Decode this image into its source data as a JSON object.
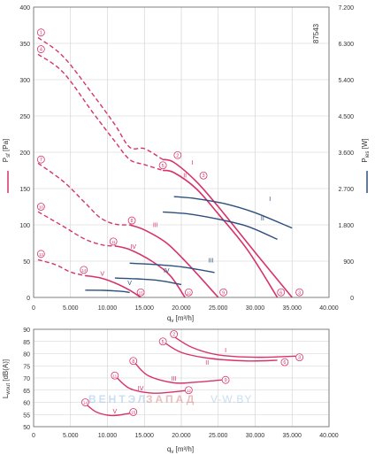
{
  "chart_data": [
    {
      "type": "line",
      "id": "fan-pressure-power",
      "code": "87543",
      "xlabel": "q",
      "xlabel_sub": "v",
      "xlabel_unit": "[m³/h]",
      "ylabel": "P",
      "ylabel_sub": "sf",
      "ylabel_unit": "[Pa]",
      "y2label": "P",
      "y2label_sub": "ies",
      "y2label_unit": "[W]",
      "xlim": [
        0,
        40000
      ],
      "ylim": [
        0,
        400
      ],
      "y2lim": [
        0,
        7200
      ],
      "xticks": [
        0,
        5000,
        10000,
        15000,
        20000,
        25000,
        30000,
        35000,
        40000
      ],
      "xtick_labels": [
        "0",
        "5.000",
        "10.000",
        "15.000",
        "20.000",
        "25.000",
        "30.000",
        "35.000",
        "40.000"
      ],
      "yticks": [
        0,
        50,
        100,
        150,
        200,
        250,
        300,
        350,
        400
      ],
      "ytick_labels": [
        "0",
        "50",
        "100",
        "150",
        "200",
        "250",
        "300",
        "350",
        "400"
      ],
      "y2ticks": [
        0,
        900,
        1800,
        2700,
        3600,
        4500,
        5400,
        6300,
        7200
      ],
      "y2tick_labels": [
        "0",
        "900",
        "1.800",
        "2.700",
        "3.600",
        "4.500",
        "5.400",
        "6.300",
        "7.200"
      ],
      "grid": true,
      "colors": {
        "pressure": "#d6336c",
        "power": "#2c4f7c",
        "grid": "#c8c8c8",
        "axis": "#555555"
      },
      "pressure_series": [
        {
          "name": "I",
          "points": [
            [
              17500,
              190
            ],
            [
              19000,
              186
            ],
            [
              22000,
              160
            ],
            [
              25000,
              125
            ],
            [
              30000,
              62
            ],
            [
              35000,
              0
            ]
          ],
          "dashed_points": [
            [
              600,
              358
            ],
            [
              4000,
              332
            ],
            [
              8000,
              280
            ],
            [
              11000,
              238
            ],
            [
              13000,
              207
            ],
            [
              15000,
              205
            ],
            [
              17500,
              190
            ]
          ]
        },
        {
          "name": "II",
          "points": [
            [
              17500,
              175
            ],
            [
              19000,
              172
            ],
            [
              22000,
              150
            ],
            [
              25000,
              115
            ],
            [
              29000,
              65
            ],
            [
              33000,
              0
            ]
          ],
          "dashed_points": [
            [
              600,
              335
            ],
            [
              4000,
              310
            ],
            [
              8000,
              255
            ],
            [
              11000,
              215
            ],
            [
              13000,
              190
            ],
            [
              15000,
              183
            ],
            [
              17500,
              175
            ]
          ]
        },
        {
          "name": "III",
          "points": [
            [
              13000,
              100
            ],
            [
              15000,
              93
            ],
            [
              18000,
              75
            ],
            [
              21000,
              45
            ],
            [
              25000,
              0
            ]
          ],
          "dashed_points": [
            [
              600,
              185
            ],
            [
              4000,
              160
            ],
            [
              7000,
              130
            ],
            [
              9000,
              110
            ],
            [
              11000,
              101
            ],
            [
              13000,
              100
            ]
          ]
        },
        {
          "name": "IV",
          "points": [
            [
              11000,
              71
            ],
            [
              13000,
              66
            ],
            [
              16000,
              50
            ],
            [
              18500,
              30
            ],
            [
              20500,
              0
            ]
          ],
          "dashed_points": [
            [
              600,
              118
            ],
            [
              4000,
              98
            ],
            [
              7000,
              80
            ],
            [
              9500,
              72
            ],
            [
              11000,
              71
            ]
          ]
        },
        {
          "name": "V",
          "points": [
            [
              7000,
              30
            ],
            [
              9000,
              27
            ],
            [
              11000,
              20
            ],
            [
              13000,
              10
            ],
            [
              14500,
              0
            ]
          ],
          "dashed_points": [
            [
              600,
              52
            ],
            [
              3000,
              45
            ],
            [
              5000,
              35
            ],
            [
              7000,
              30
            ]
          ]
        }
      ],
      "power_series": [
        {
          "name": "I",
          "points": [
            [
              19000,
              2500
            ],
            [
              22000,
              2450
            ],
            [
              26000,
              2320
            ],
            [
              30000,
              2100
            ],
            [
              35000,
              1720
            ]
          ]
        },
        {
          "name": "II",
          "points": [
            [
              17500,
              2120
            ],
            [
              21000,
              2070
            ],
            [
              25000,
              1940
            ],
            [
              29000,
              1760
            ],
            [
              33000,
              1440
            ]
          ]
        },
        {
          "name": "III",
          "points": [
            [
              13000,
              850
            ],
            [
              16000,
              820
            ],
            [
              20000,
              760
            ],
            [
              24500,
              620
            ]
          ]
        },
        {
          "name": "IV",
          "points": [
            [
              11000,
              480
            ],
            [
              14000,
              460
            ],
            [
              17000,
              420
            ],
            [
              20000,
              320
            ]
          ]
        },
        {
          "name": "V",
          "points": [
            [
              7000,
              180
            ],
            [
              9500,
              175
            ],
            [
              12000,
              150
            ],
            [
              13000,
              120
            ]
          ]
        }
      ],
      "curve_labels": [
        {
          "text": "I",
          "x": 21500,
          "y": 183
        },
        {
          "text": "II",
          "x": 20500,
          "y": 165
        },
        {
          "text": "III",
          "x": 16500,
          "y": 97
        },
        {
          "text": "IV",
          "x": 13500,
          "y": 67
        },
        {
          "text": "V",
          "x": 9300,
          "y": 30
        },
        {
          "text": "I",
          "x": 32000,
          "y": 133
        },
        {
          "text": "II",
          "x": 31000,
          "y": 106
        },
        {
          "text": "III",
          "x": 24000,
          "y": 48
        },
        {
          "text": "IV",
          "x": 18000,
          "y": 34
        },
        {
          "text": "V",
          "x": 13000,
          "y": 17
        }
      ],
      "markers": [
        {
          "text": "1",
          "x": 1000,
          "y": 365
        },
        {
          "text": "4",
          "x": 1000,
          "y": 342
        },
        {
          "text": "7",
          "x": 1000,
          "y": 190
        },
        {
          "text": "10",
          "x": 1000,
          "y": 125
        },
        {
          "text": "13",
          "x": 1000,
          "y": 60
        },
        {
          "text": "2",
          "x": 19500,
          "y": 196
        },
        {
          "text": "5",
          "x": 17500,
          "y": 182
        },
        {
          "text": "3",
          "x": 23000,
          "y": 168
        },
        {
          "text": "8",
          "x": 13300,
          "y": 106
        },
        {
          "text": "11",
          "x": 10800,
          "y": 77
        },
        {
          "text": "14",
          "x": 6800,
          "y": 38
        },
        {
          "text": "3",
          "x": 36000,
          "y": 7
        },
        {
          "text": "6",
          "x": 33500,
          "y": 7
        },
        {
          "text": "9",
          "x": 25700,
          "y": 7
        },
        {
          "text": "12",
          "x": 21000,
          "y": 7
        },
        {
          "text": "15",
          "x": 14500,
          "y": 7
        }
      ]
    },
    {
      "type": "line",
      "id": "fan-sound-level",
      "xlabel": "q",
      "xlabel_sub": "v",
      "xlabel_unit": "[m³/h]",
      "ylabel": "L",
      "ylabel_sub": "wout",
      "ylabel_unit": "[dB(A)]",
      "xlim": [
        0,
        40000
      ],
      "ylim": [
        50,
        90
      ],
      "xticks": [
        0,
        5000,
        10000,
        15000,
        20000,
        25000,
        30000,
        35000,
        40000
      ],
      "xtick_labels": [
        "0",
        "5.000",
        "10.000",
        "15.000",
        "20.000",
        "25.000",
        "30.000",
        "35.000",
        "40.000"
      ],
      "yticks": [
        50,
        55,
        60,
        65,
        70,
        75,
        80,
        85,
        90
      ],
      "ytick_labels": [
        "50",
        "55",
        "60",
        "65",
        "70",
        "75",
        "80",
        "85",
        "90"
      ],
      "grid": true,
      "series": [
        {
          "name": "I",
          "points": [
            [
              19000,
              87
            ],
            [
              21500,
              82.5
            ],
            [
              25000,
              79.5
            ],
            [
              30000,
              78.5
            ],
            [
              35500,
              79
            ]
          ]
        },
        {
          "name": "II",
          "points": [
            [
              17500,
              85
            ],
            [
              20000,
              80.5
            ],
            [
              24000,
              78
            ],
            [
              29000,
              77
            ],
            [
              33000,
              77.3
            ]
          ]
        },
        {
          "name": "III",
          "points": [
            [
              13500,
              77
            ],
            [
              15500,
              71
            ],
            [
              19000,
              68
            ],
            [
              22000,
              68.3
            ],
            [
              25500,
              69.2
            ]
          ]
        },
        {
          "name": "IV",
          "points": [
            [
              11000,
              71
            ],
            [
              13000,
              65.7
            ],
            [
              16000,
              63.8
            ],
            [
              19000,
              64.3
            ],
            [
              21000,
              65
            ]
          ]
        },
        {
          "name": "V",
          "points": [
            [
              7000,
              59.5
            ],
            [
              8500,
              56
            ],
            [
              10500,
              54.6
            ],
            [
              12500,
              55.2
            ],
            [
              13500,
              56
            ]
          ]
        }
      ],
      "curve_labels": [
        {
          "text": "I",
          "x": 26000,
          "y": 80.5
        },
        {
          "text": "II",
          "x": 23500,
          "y": 75.5
        },
        {
          "text": "III",
          "x": 19000,
          "y": 69
        },
        {
          "text": "IV",
          "x": 14500,
          "y": 65
        },
        {
          "text": "V",
          "x": 11000,
          "y": 55.5
        }
      ],
      "markers": [
        {
          "text": "2",
          "x": 19000,
          "y": 88
        },
        {
          "text": "5",
          "x": 17500,
          "y": 85
        },
        {
          "text": "8",
          "x": 13500,
          "y": 77
        },
        {
          "text": "11",
          "x": 11000,
          "y": 71
        },
        {
          "text": "14",
          "x": 7000,
          "y": 60
        },
        {
          "text": "3",
          "x": 36000,
          "y": 78.5
        },
        {
          "text": "6",
          "x": 34000,
          "y": 76.5
        },
        {
          "text": "9",
          "x": 26000,
          "y": 69.2
        },
        {
          "text": "12",
          "x": 21000,
          "y": 65
        },
        {
          "text": "15",
          "x": 13500,
          "y": 56
        }
      ]
    }
  ],
  "watermark": {
    "text_left": "ВЕНТЭЛ",
    "text_right": "ЗАПАД",
    "text_url": "V-W.BY"
  }
}
